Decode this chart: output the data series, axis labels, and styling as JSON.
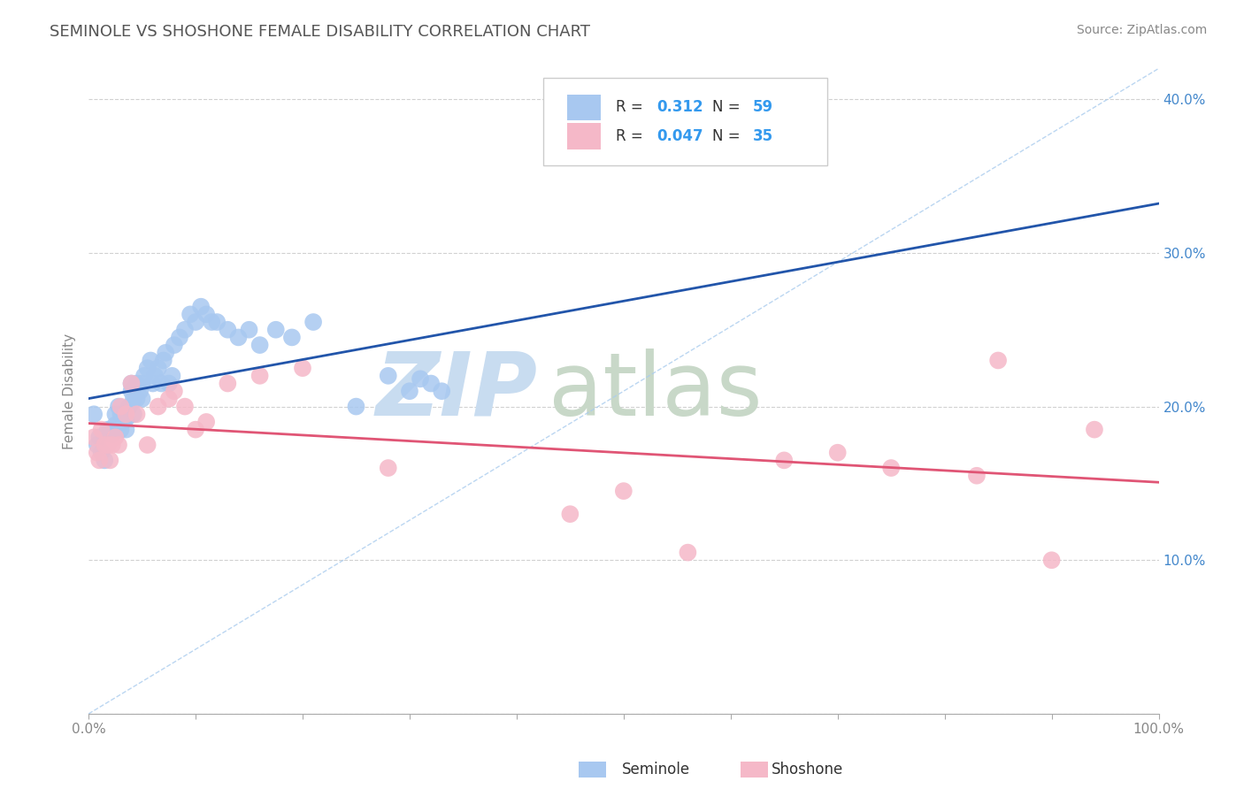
{
  "title": "SEMINOLE VS SHOSHONE FEMALE DISABILITY CORRELATION CHART",
  "source": "Source: ZipAtlas.com",
  "ylabel": "Female Disability",
  "xlim": [
    0,
    1.0
  ],
  "ylim": [
    0.0,
    0.42
  ],
  "xticks": [
    0.0,
    0.1,
    0.2,
    0.3,
    0.4,
    0.5,
    0.6,
    0.7,
    0.8,
    0.9,
    1.0
  ],
  "xticklabels": [
    "0.0%",
    "",
    "",
    "",
    "",
    "",
    "",
    "",
    "",
    "",
    "100.0%"
  ],
  "yticks": [
    0.0,
    0.1,
    0.2,
    0.3,
    0.4
  ],
  "yticklabels": [
    "",
    "10.0%",
    "20.0%",
    "30.0%",
    "40.0%"
  ],
  "seminole_R": 0.312,
  "seminole_N": 59,
  "shoshone_R": 0.047,
  "shoshone_N": 35,
  "seminole_color": "#A8C8F0",
  "shoshone_color": "#F5B8C8",
  "seminole_line_color": "#2255AA",
  "shoshone_line_color": "#E05575",
  "ref_line_color": "#AACCEE",
  "bg_color": "#FFFFFF",
  "grid_color": "#CCCCCC",
  "title_color": "#555555",
  "seminole_x": [
    0.005,
    0.008,
    0.01,
    0.012,
    0.015,
    0.018,
    0.02,
    0.022,
    0.025,
    0.025,
    0.028,
    0.03,
    0.03,
    0.032,
    0.035,
    0.035,
    0.038,
    0.04,
    0.04,
    0.042,
    0.042,
    0.045,
    0.045,
    0.048,
    0.05,
    0.05,
    0.052,
    0.055,
    0.058,
    0.06,
    0.062,
    0.065,
    0.068,
    0.07,
    0.072,
    0.075,
    0.078,
    0.08,
    0.085,
    0.09,
    0.095,
    0.1,
    0.105,
    0.11,
    0.115,
    0.12,
    0.13,
    0.14,
    0.15,
    0.16,
    0.175,
    0.19,
    0.21,
    0.25,
    0.28,
    0.3,
    0.31,
    0.32,
    0.33
  ],
  "seminole_y": [
    0.195,
    0.175,
    0.18,
    0.17,
    0.165,
    0.185,
    0.185,
    0.182,
    0.195,
    0.188,
    0.2,
    0.195,
    0.185,
    0.19,
    0.185,
    0.192,
    0.2,
    0.21,
    0.215,
    0.205,
    0.195,
    0.205,
    0.215,
    0.21,
    0.215,
    0.205,
    0.22,
    0.225,
    0.23,
    0.215,
    0.22,
    0.225,
    0.215,
    0.23,
    0.235,
    0.215,
    0.22,
    0.24,
    0.245,
    0.25,
    0.26,
    0.255,
    0.265,
    0.26,
    0.255,
    0.255,
    0.25,
    0.245,
    0.25,
    0.24,
    0.25,
    0.245,
    0.255,
    0.2,
    0.22,
    0.21,
    0.218,
    0.215,
    0.21
  ],
  "shoshone_x": [
    0.005,
    0.008,
    0.01,
    0.012,
    0.015,
    0.018,
    0.02,
    0.022,
    0.025,
    0.028,
    0.03,
    0.035,
    0.04,
    0.045,
    0.055,
    0.065,
    0.075,
    0.08,
    0.09,
    0.1,
    0.11,
    0.13,
    0.16,
    0.2,
    0.28,
    0.45,
    0.5,
    0.56,
    0.65,
    0.7,
    0.75,
    0.83,
    0.85,
    0.9,
    0.94
  ],
  "shoshone_y": [
    0.18,
    0.17,
    0.165,
    0.185,
    0.175,
    0.175,
    0.165,
    0.175,
    0.18,
    0.175,
    0.2,
    0.195,
    0.215,
    0.195,
    0.175,
    0.2,
    0.205,
    0.21,
    0.2,
    0.185,
    0.19,
    0.215,
    0.22,
    0.225,
    0.16,
    0.13,
    0.145,
    0.105,
    0.165,
    0.17,
    0.16,
    0.155,
    0.23,
    0.1,
    0.185
  ],
  "watermark_zip": "ZIP",
  "watermark_atlas": "atlas"
}
